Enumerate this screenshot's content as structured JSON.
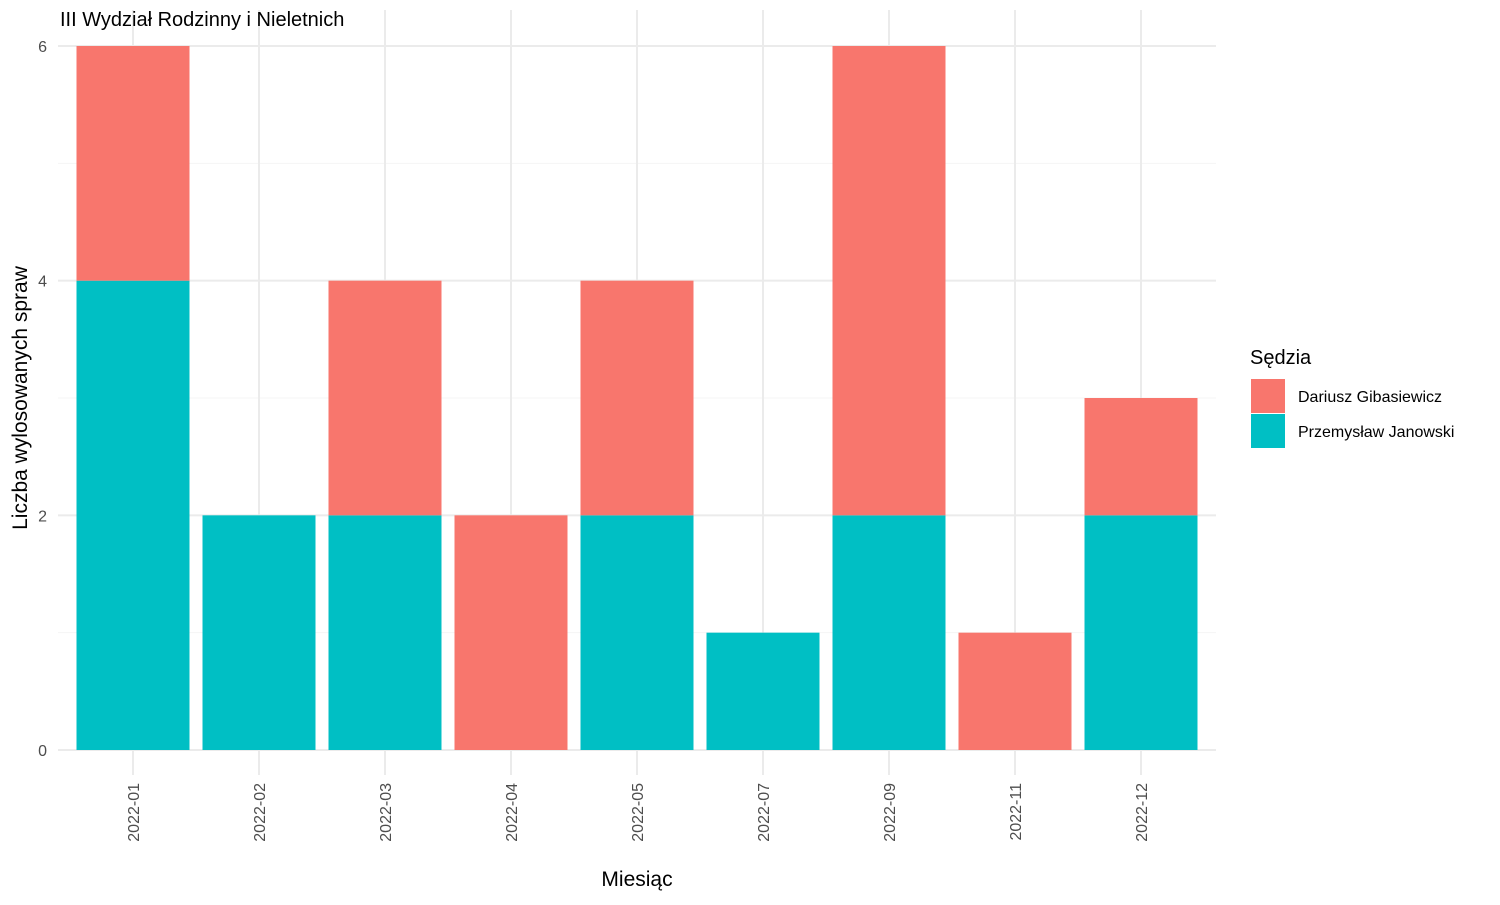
{
  "chart_data": {
    "type": "bar",
    "stacked": true,
    "title": "III Wydział Rodzinny i Nieletnich",
    "xlabel": "Miesiąc",
    "ylabel": "Liczba wylosowanych spraw",
    "categories": [
      "2022-01",
      "2022-02",
      "2022-03",
      "2022-04",
      "2022-05",
      "2022-07",
      "2022-09",
      "2022-11",
      "2022-12"
    ],
    "series": [
      {
        "name": "Przemysław Janowski",
        "color": "#00BFC4",
        "values": [
          4,
          2,
          2,
          0,
          2,
          1,
          2,
          0,
          2
        ]
      },
      {
        "name": "Dariusz Gibasiewicz",
        "color": "#F8766D",
        "values": [
          2,
          0,
          2,
          2,
          2,
          0,
          4,
          1,
          1
        ]
      }
    ],
    "ylim": [
      0,
      6
    ],
    "yticks": [
      0,
      2,
      4,
      6
    ],
    "grid": true,
    "legend": {
      "title": "Sędzia",
      "position": "right",
      "entries": [
        {
          "name": "Dariusz Gibasiewicz",
          "color": "#F8766D"
        },
        {
          "name": "Przemysław Janowski",
          "color": "#00BFC4"
        }
      ]
    }
  }
}
